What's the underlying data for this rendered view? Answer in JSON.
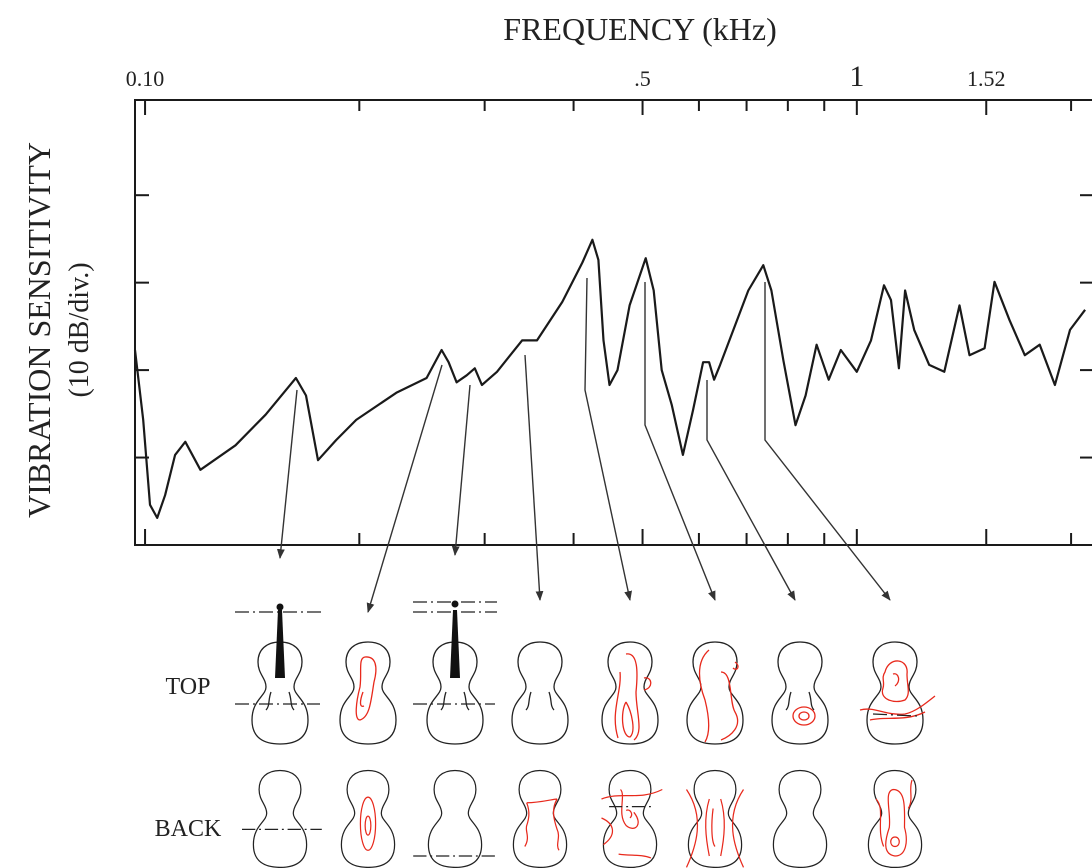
{
  "chart_data": {
    "type": "line",
    "title": "FREQUENCY (kHz)",
    "ylabel_lines": [
      "VIBRATION SENSITIVITY",
      "(10 dB/div.)"
    ],
    "annotations": [
      "TOP",
      "BACK"
    ],
    "xscale": "log",
    "xlim": [
      0.0968,
      2.14
    ],
    "ylim": [
      0,
      51
    ],
    "xticks": [
      {
        "value": 0.1,
        "label": "0.10"
      },
      {
        "value": 0.5,
        "label": ".5"
      },
      1,
      {
        "value": 1.52,
        "label": "1.52"
      }
    ],
    "xminorticks": [
      0.2,
      0.3,
      0.4,
      0.6,
      0.7,
      0.8,
      0.9,
      2
    ],
    "yticks": [
      10,
      20,
      30,
      40
    ],
    "series": [
      {
        "color": "#1a1a1a",
        "x": [
          0.0968,
          0.0994,
          0.1016,
          0.104,
          0.1067,
          0.1102,
          0.1139,
          0.1196,
          0.134,
          0.1477,
          0.1629,
          0.1683,
          0.175,
          0.1855,
          0.198,
          0.2254,
          0.2486,
          0.261,
          0.267,
          0.274,
          0.2831,
          0.2906,
          0.2973,
          0.3122,
          0.3386,
          0.3554,
          0.3857,
          0.4116,
          0.4251,
          0.4335,
          0.4406,
          0.4493,
          0.4611,
          0.4795,
          0.5051,
          0.5184,
          0.532,
          0.5496,
          0.5697,
          0.5886,
          0.6081,
          0.6201,
          0.6302,
          0.6426,
          0.7039,
          0.739,
          0.7585,
          0.7886,
          0.82,
          0.8472,
          0.878,
          0.913,
          0.9494,
          1.0,
          1.047,
          1.092,
          1.117,
          1.146,
          1.169,
          1.204,
          1.264,
          1.327,
          1.394,
          1.44,
          1.512,
          1.561,
          1.639,
          1.722,
          1.807,
          1.898,
          1.993,
          2.093
        ],
        "values": [
          22.3,
          14.3,
          4.6,
          3.1,
          5.7,
          10.3,
          11.8,
          8.6,
          11.4,
          14.9,
          19.1,
          17.1,
          9.7,
          12.0,
          14.3,
          17.4,
          19.1,
          22.3,
          20.9,
          18.6,
          19.4,
          20.2,
          18.3,
          19.8,
          23.4,
          23.4,
          27.8,
          32.3,
          34.9,
          32.6,
          23.4,
          18.3,
          20.0,
          27.4,
          32.8,
          29.1,
          20.0,
          16.0,
          10.3,
          15.4,
          20.9,
          20.9,
          18.9,
          20.6,
          29.1,
          32.0,
          29.1,
          21.1,
          13.7,
          17.1,
          22.9,
          18.9,
          22.3,
          19.8,
          23.4,
          29.7,
          28.0,
          20.2,
          29.1,
          24.6,
          20.6,
          19.8,
          27.4,
          21.7,
          22.5,
          30.1,
          25.7,
          21.7,
          22.9,
          18.3,
          24.6,
          26.9
        ]
      }
    ]
  }
}
